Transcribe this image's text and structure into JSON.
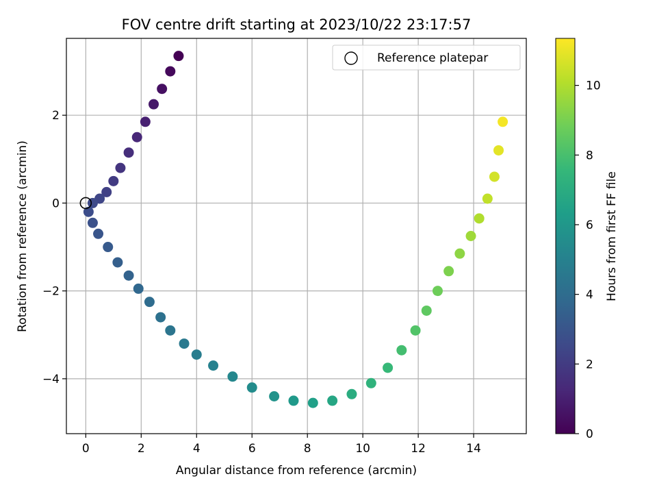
{
  "chart_data": {
    "type": "scatter",
    "title": "FOV centre drift starting at 2023/10/22 23:17:57",
    "xlabel": "Angular distance from reference (arcmin)",
    "ylabel": "Rotation from reference (arcmin)",
    "xlim": [
      -0.7,
      15.9
    ],
    "ylim": [
      -5.25,
      3.75
    ],
    "xticks": [
      0,
      2,
      4,
      6,
      8,
      10,
      12,
      14
    ],
    "yticks": [
      -4,
      -2,
      0,
      2
    ],
    "grid": true,
    "legend": {
      "position": "top-right",
      "entries": [
        "Reference platepar"
      ]
    },
    "reference_point": {
      "x": 0,
      "y": 0
    },
    "colorbar": {
      "label": "Hours from first FF file",
      "range": [
        0,
        11.35
      ],
      "ticks": [
        0,
        2,
        4,
        6,
        8,
        10
      ],
      "colormap": "viridis",
      "stops": [
        "#440154",
        "#482878",
        "#3e4989",
        "#31688e",
        "#26828e",
        "#1f9e89",
        "#35b779",
        "#6ece58",
        "#b5de2b",
        "#fde725"
      ]
    },
    "path_series": {
      "name": "FOV centre drift",
      "x": [
        3.35,
        3.05,
        2.75,
        2.45,
        2.15,
        1.85,
        1.55,
        1.25,
        1.0,
        0.75,
        0.5,
        0.25,
        0.1,
        0.25,
        0.45,
        0.8,
        1.15,
        1.55,
        1.9,
        2.3,
        2.7,
        3.05,
        3.55,
        4.0,
        4.6,
        5.3,
        6.0,
        6.8,
        7.5,
        8.2,
        8.9,
        9.6,
        10.3,
        10.9,
        11.4,
        11.9,
        12.3,
        12.7,
        13.1,
        13.5,
        13.9,
        14.2,
        14.5,
        14.75,
        14.9,
        15.05
      ],
      "y": [
        3.35,
        3.0,
        2.6,
        2.25,
        1.85,
        1.5,
        1.15,
        0.8,
        0.5,
        0.25,
        0.1,
        0.0,
        -0.2,
        -0.45,
        -0.7,
        -1.0,
        -1.35,
        -1.65,
        -1.95,
        -2.25,
        -2.6,
        -2.9,
        -3.2,
        -3.45,
        -3.7,
        -3.95,
        -4.2,
        -4.4,
        -4.5,
        -4.55,
        -4.5,
        -4.35,
        -4.1,
        -3.75,
        -3.35,
        -2.9,
        -2.45,
        -2.0,
        -1.55,
        -1.15,
        -0.75,
        -0.35,
        0.1,
        0.6,
        1.2,
        1.85
      ],
      "hours": [
        0.0,
        0.25,
        0.5,
        0.75,
        1.0,
        1.25,
        1.5,
        1.75,
        2.0,
        2.2,
        2.4,
        2.55,
        2.7,
        2.85,
        3.0,
        3.2,
        3.4,
        3.6,
        3.8,
        4.0,
        4.2,
        4.4,
        4.6,
        4.8,
        5.0,
        5.25,
        5.5,
        5.8,
        6.1,
        6.4,
        6.7,
        7.0,
        7.3,
        7.6,
        7.9,
        8.2,
        8.5,
        8.8,
        9.1,
        9.4,
        9.7,
        10.0,
        10.3,
        10.6,
        10.9,
        11.2
      ]
    }
  }
}
